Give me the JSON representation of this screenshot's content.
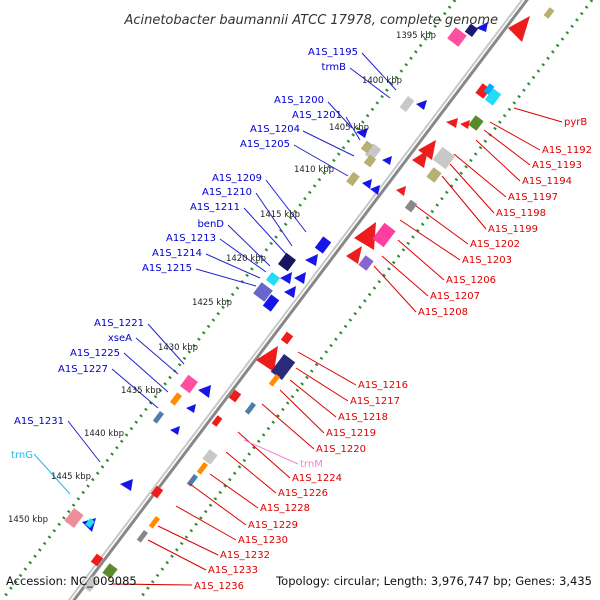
{
  "title": "Acinetobacter baumannii ATCC 17978, complete genome",
  "footer": {
    "accession": "Accession: NC_009085",
    "topology": "Topology: circular; Length: 3,976,747 bp; Genes: 3,435"
  },
  "colors": {
    "backbone": "#888888",
    "forward_ruler": "#2e8b2e",
    "forward_label": "#0000cc",
    "reverse_label": "#dd0000",
    "trna_label_forward": "#22bbdd",
    "trna_label_reverse": "#ee88cc"
  },
  "ticks": [
    "1395 kbp",
    "1400 kbp",
    "1405 kbp",
    "1410 kbp",
    "1415 kbp",
    "1420 kbp",
    "1425 kbp",
    "1430 kbp",
    "1435 kbp",
    "1440 kbp",
    "1445 kbp",
    "1450 kbp"
  ],
  "forward_labels": [
    "A1S_1195",
    "trmB",
    "A1S_1200",
    "A1S_1201",
    "A1S_1204",
    "A1S_1205",
    "A1S_1209",
    "A1S_1210",
    "A1S_1211",
    "benD",
    "A1S_1213",
    "A1S_1214",
    "A1S_1215",
    "A1S_1221",
    "xseA",
    "A1S_1225",
    "A1S_1227",
    "A1S_1231",
    "trnG"
  ],
  "reverse_labels": [
    "pyrB",
    "A1S_1192",
    "A1S_1193",
    "A1S_1194",
    "A1S_1197",
    "A1S_1198",
    "A1S_1199",
    "A1S_1202",
    "A1S_1203",
    "A1S_1206",
    "A1S_1207",
    "A1S_1208",
    "A1S_1216",
    "A1S_1217",
    "A1S_1218",
    "A1S_1219",
    "A1S_1220",
    "trnM",
    "A1S_1224",
    "A1S_1226",
    "A1S_1228",
    "A1S_1229",
    "A1S_1230",
    "A1S_1232",
    "A1S_1233",
    "A1S_1236"
  ]
}
